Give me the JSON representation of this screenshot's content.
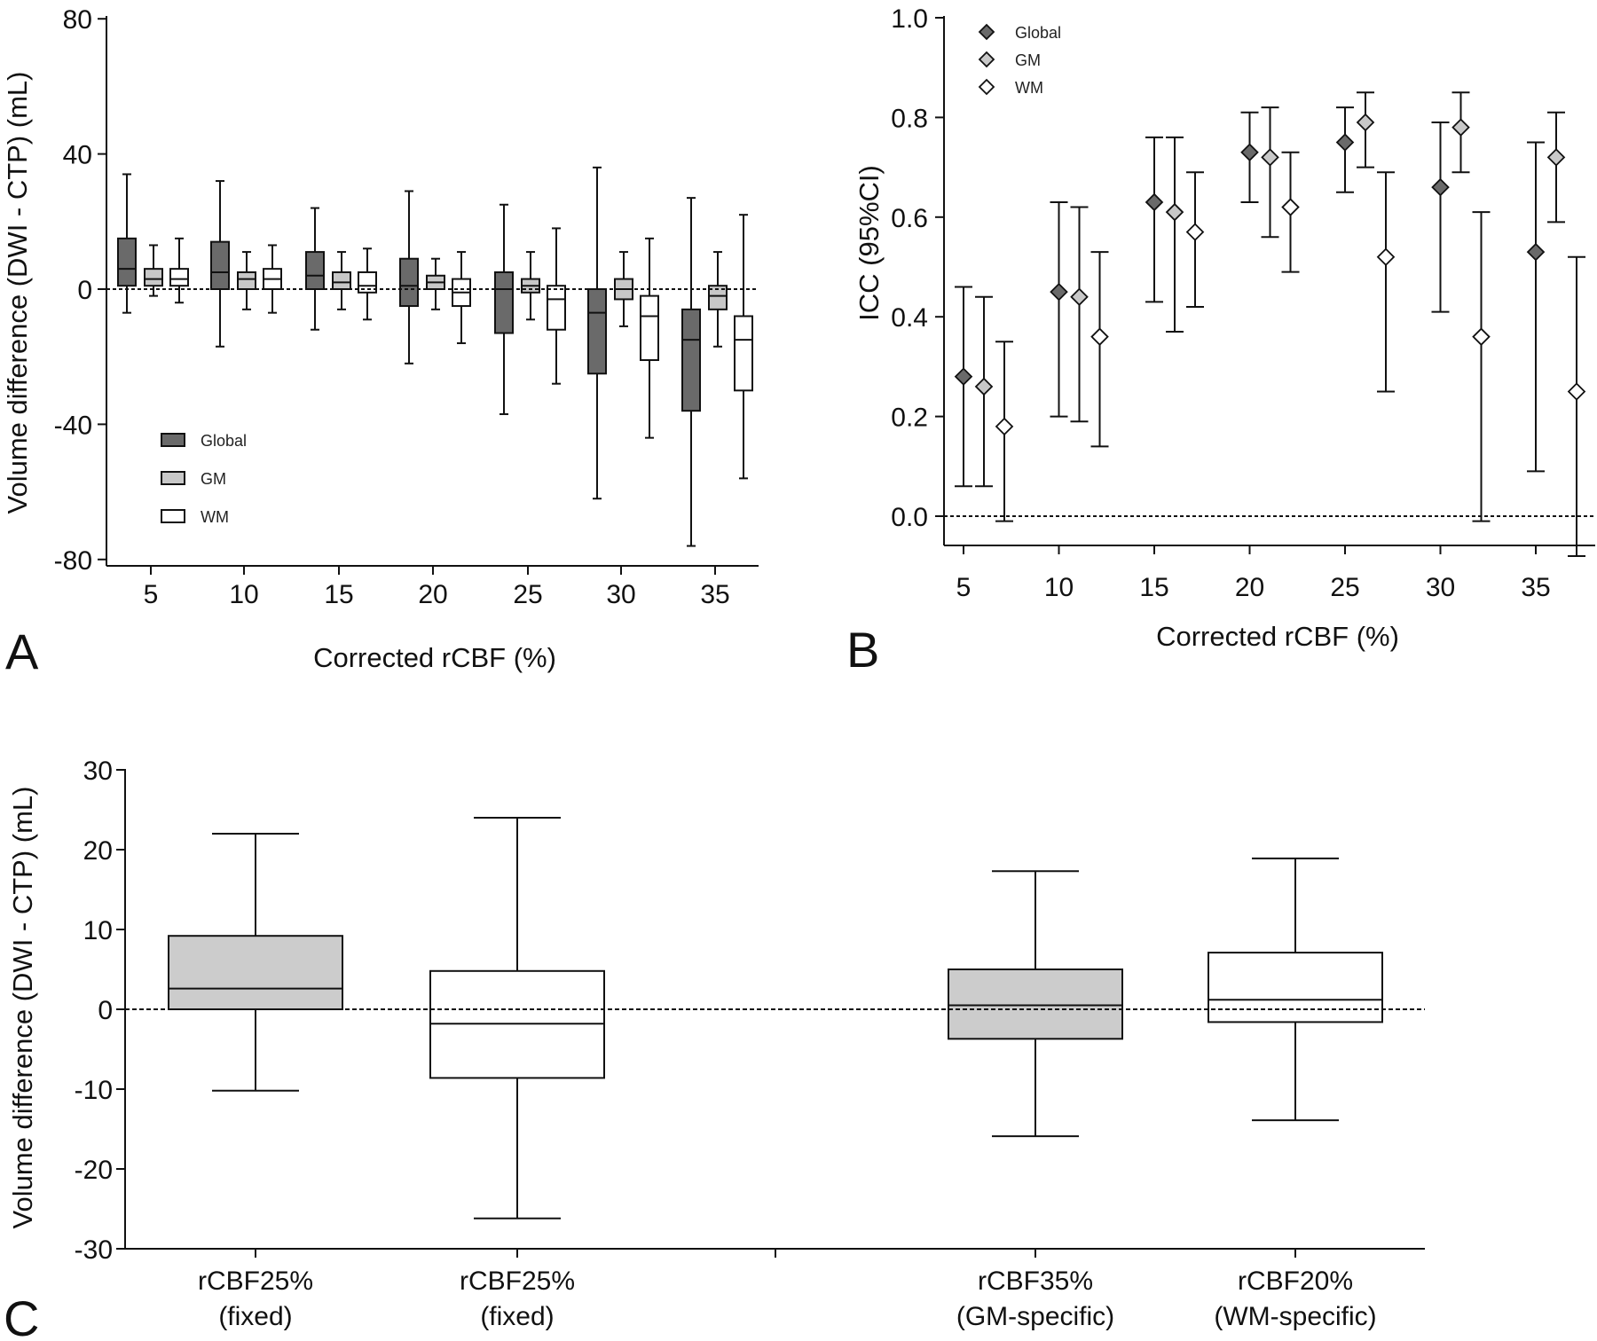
{
  "chart_data": [
    {
      "panel_label": "A",
      "type": "box",
      "ylabel": "Volume difference (DWI - CTP) (mL)",
      "xlabel": "Corrected rCBF (%)",
      "ylim": [
        -80,
        80
      ],
      "yticks": [
        80,
        40,
        0,
        -40,
        -80
      ],
      "reference_line": 0,
      "legend_placement": "bottom-left",
      "categories": [
        "5",
        "10",
        "15",
        "20",
        "25",
        "30",
        "35"
      ],
      "series": [
        {
          "name": "Global",
          "color": "#6a6a6a",
          "boxes": [
            {
              "min": -7,
              "q1": 1,
              "median": 6,
              "q3": 15,
              "max": 34
            },
            {
              "min": -17,
              "q1": 0,
              "median": 5,
              "q3": 14,
              "max": 32
            },
            {
              "min": -12,
              "q1": 0,
              "median": 4,
              "q3": 11,
              "max": 24
            },
            {
              "min": -22,
              "q1": -5,
              "median": 1,
              "q3": 9,
              "max": 29
            },
            {
              "min": -37,
              "q1": -13,
              "median": 0,
              "q3": 5,
              "max": 25
            },
            {
              "min": -62,
              "q1": -25,
              "median": -7,
              "q3": 0,
              "max": 36
            },
            {
              "min": -76,
              "q1": -36,
              "median": -15,
              "q3": -6,
              "max": 27
            }
          ]
        },
        {
          "name": "GM",
          "color": "#c8c8c8",
          "boxes": [
            {
              "min": -2,
              "q1": 1,
              "median": 3,
              "q3": 6,
              "max": 13
            },
            {
              "min": -6,
              "q1": 0,
              "median": 3,
              "q3": 5,
              "max": 11
            },
            {
              "min": -6,
              "q1": 0,
              "median": 2,
              "q3": 5,
              "max": 11
            },
            {
              "min": -6,
              "q1": 0,
              "median": 2,
              "q3": 4,
              "max": 9
            },
            {
              "min": -9,
              "q1": -1,
              "median": 1,
              "q3": 3,
              "max": 11
            },
            {
              "min": -11,
              "q1": -3,
              "median": 0,
              "q3": 3,
              "max": 11
            },
            {
              "min": -17,
              "q1": -6,
              "median": -2,
              "q3": 1,
              "max": 11
            }
          ]
        },
        {
          "name": "WM",
          "color": "#ffffff",
          "boxes": [
            {
              "min": -4,
              "q1": 1,
              "median": 3,
              "q3": 6,
              "max": 15
            },
            {
              "min": -7,
              "q1": 0,
              "median": 3,
              "q3": 6,
              "max": 13
            },
            {
              "min": -9,
              "q1": -1,
              "median": 1,
              "q3": 5,
              "max": 12
            },
            {
              "min": -16,
              "q1": -5,
              "median": -1,
              "q3": 3,
              "max": 11
            },
            {
              "min": -28,
              "q1": -12,
              "median": -3,
              "q3": 1,
              "max": 18
            },
            {
              "min": -44,
              "q1": -21,
              "median": -8,
              "q3": -2,
              "max": 15
            },
            {
              "min": -56,
              "q1": -30,
              "median": -15,
              "q3": -8,
              "max": 22
            }
          ]
        }
      ]
    },
    {
      "panel_label": "B",
      "type": "scatter",
      "ylabel": "ICC (95%CI)",
      "xlabel": "Corrected rCBF (%)",
      "ylim": [
        -0.08,
        1.0
      ],
      "yticks": [
        "1.0",
        "0.8",
        "0.6",
        "0.4",
        "0.2",
        "0.0"
      ],
      "xticks": [
        "5",
        "10",
        "15",
        "20",
        "25",
        "30",
        "35"
      ],
      "reference_line": 0,
      "legend_placement": "top-left",
      "series": [
        {
          "name": "Global",
          "color": "#6a6a6a",
          "points": [
            {
              "x": 5,
              "icc": 0.28,
              "lo": 0.06,
              "hi": 0.46
            },
            {
              "x": 10,
              "icc": 0.45,
              "lo": 0.2,
              "hi": 0.63
            },
            {
              "x": 15,
              "icc": 0.63,
              "lo": 0.43,
              "hi": 0.76
            },
            {
              "x": 20,
              "icc": 0.73,
              "lo": 0.63,
              "hi": 0.81
            },
            {
              "x": 25,
              "icc": 0.75,
              "lo": 0.65,
              "hi": 0.82
            },
            {
              "x": 30,
              "icc": 0.66,
              "lo": 0.41,
              "hi": 0.79
            },
            {
              "x": 35,
              "icc": 0.53,
              "lo": 0.09,
              "hi": 0.75
            }
          ]
        },
        {
          "name": "GM",
          "color": "#c8c8c8",
          "points": [
            {
              "x": 5,
              "icc": 0.26,
              "lo": 0.06,
              "hi": 0.44
            },
            {
              "x": 10,
              "icc": 0.44,
              "lo": 0.19,
              "hi": 0.62
            },
            {
              "x": 15,
              "icc": 0.61,
              "lo": 0.37,
              "hi": 0.76
            },
            {
              "x": 20,
              "icc": 0.72,
              "lo": 0.56,
              "hi": 0.82
            },
            {
              "x": 25,
              "icc": 0.79,
              "lo": 0.7,
              "hi": 0.85
            },
            {
              "x": 30,
              "icc": 0.78,
              "lo": 0.69,
              "hi": 0.85
            },
            {
              "x": 35,
              "icc": 0.72,
              "lo": 0.59,
              "hi": 0.81
            }
          ]
        },
        {
          "name": "WM",
          "color": "#ffffff",
          "points": [
            {
              "x": 5,
              "icc": 0.18,
              "lo": -0.01,
              "hi": 0.35
            },
            {
              "x": 10,
              "icc": 0.36,
              "lo": 0.14,
              "hi": 0.53
            },
            {
              "x": 15,
              "icc": 0.57,
              "lo": 0.42,
              "hi": 0.69
            },
            {
              "x": 20,
              "icc": 0.62,
              "lo": 0.49,
              "hi": 0.73
            },
            {
              "x": 25,
              "icc": 0.52,
              "lo": 0.25,
              "hi": 0.69
            },
            {
              "x": 30,
              "icc": 0.36,
              "lo": -0.01,
              "hi": 0.61
            },
            {
              "x": 35,
              "icc": 0.25,
              "lo": -0.08,
              "hi": 0.52
            }
          ]
        }
      ]
    },
    {
      "panel_label": "C",
      "type": "box",
      "ylabel": "Volume difference (DWI - CTP) (mL)",
      "ylim": [
        -30,
        30
      ],
      "yticks": [
        "30",
        "20",
        "10",
        "0",
        "-10",
        "-20",
        "-30"
      ],
      "reference_line": 0,
      "categories": [
        {
          "line1": "rCBF25%",
          "line2": "(fixed)"
        },
        {
          "line1": "rCBF25%",
          "line2": "(fixed)"
        },
        {
          "line1": "rCBF35%",
          "line2": "(GM-specific)"
        },
        {
          "line1": "rCBF20%",
          "line2": "(WM-specific)"
        }
      ],
      "boxes": [
        {
          "color": "#cccccc",
          "min": -10.2,
          "q1": 0,
          "median": 2.6,
          "q3": 9.2,
          "max": 22
        },
        {
          "color": "#ffffff",
          "min": -26.2,
          "q1": -8.6,
          "median": -1.8,
          "q3": 4.8,
          "max": 24
        },
        {
          "color": "#cccccc",
          "min": -15.9,
          "q1": -3.7,
          "median": 0.5,
          "q3": 5,
          "max": 17.3
        },
        {
          "color": "#ffffff",
          "min": -13.9,
          "q1": -1.6,
          "median": 1.2,
          "q3": 7.1,
          "max": 18.9
        }
      ]
    }
  ]
}
